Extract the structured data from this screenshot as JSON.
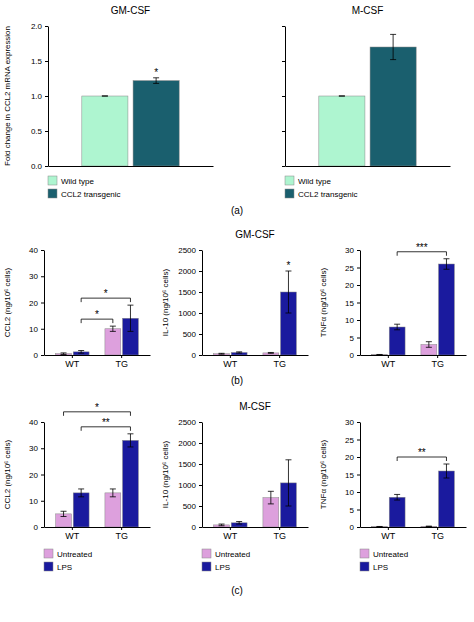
{
  "chart_data": [
    {
      "type": "bar",
      "title": "GM-CSF",
      "ylabel": "Fold change in CCL2 mRNA expression",
      "categories": [
        null
      ],
      "series": [
        {
          "name": "Wild type",
          "color": "#aef5d0",
          "values": [
            1.0
          ],
          "errors": [
            0.0
          ]
        },
        {
          "name": "CCL2 transgenic",
          "color": "#1a5f6e",
          "values": [
            1.22
          ],
          "errors": [
            0.04
          ]
        }
      ],
      "ylim": [
        0,
        2.0
      ],
      "yticks": [
        {
          "value": 0.0,
          "label": "0.0"
        },
        0.5,
        {
          "value": 1.0,
          "label": "1.0"
        },
        1.5,
        {
          "value": 2.0,
          "label": "2.0"
        }
      ],
      "tick_labels": "y",
      "legend": "bottom",
      "annotations": [
        {
          "text": "*",
          "at": [
            null,
            1
          ]
        },
        {
          "text": "(a)"
        }
      ]
    },
    {
      "type": "bar",
      "title": "M-CSF",
      "categories": [
        null
      ],
      "series": [
        {
          "name": "Wild type",
          "color": "#aef5d0",
          "values": [
            1.0
          ],
          "errors": [
            0.0
          ]
        },
        {
          "name": "CCL2 transgenic",
          "color": "#1a5f6e",
          "values": [
            1.7
          ],
          "errors": [
            0.18
          ]
        }
      ],
      "ylim": [
        0,
        2.0
      ],
      "yticks": [
        0.0,
        0.5,
        1.0,
        1.5,
        2.0
      ],
      "tick_labels": false,
      "legend": "bottom"
    },
    {
      "type": "bar",
      "ylabel": "CCL2 (ng/10⁶ cells)",
      "categories": [
        "WT",
        "TG"
      ],
      "series": [
        {
          "color": "#dda0dd",
          "values": [
            0.5,
            10.0
          ],
          "errors": [
            0.3,
            1.0
          ]
        },
        {
          "color": "#1a1a9e",
          "values": [
            1.2,
            14.0
          ],
          "errors": [
            0.5,
            5.0
          ]
        }
      ],
      "ylim": [
        0,
        40
      ],
      "yticks": [
        0,
        10,
        20,
        30,
        40
      ],
      "annotations": [
        {
          "text": "*",
          "from": [
            "WT",
            1
          ],
          "to": [
            "TG",
            0
          ]
        },
        {
          "text": "*",
          "from": [
            "WT",
            1
          ],
          "to": [
            "TG",
            1
          ]
        },
        {
          "text": "(b)"
        }
      ]
    },
    {
      "type": "bar",
      "title": "GM-CSF",
      "ylabel": "IL-10 (ng/10⁶ cells)",
      "categories": [
        "WT",
        "TG"
      ],
      "series": [
        {
          "color": "#dda0dd",
          "values": [
            30,
            50
          ],
          "errors": [
            10,
            10
          ]
        },
        {
          "color": "#1a1a9e",
          "values": [
            60,
            1500
          ],
          "errors": [
            15,
            500
          ]
        }
      ],
      "ylim": [
        0,
        2500
      ],
      "yticks": [
        0,
        500,
        1000,
        1500,
        2000,
        2500
      ],
      "annotations": [
        {
          "text": "*",
          "at": [
            "TG",
            1
          ]
        }
      ]
    },
    {
      "type": "bar",
      "ylabel": "TNFα (ng/10⁶ cells)",
      "categories": [
        "WT",
        "TG"
      ],
      "series": [
        {
          "color": "#dda0dd",
          "values": [
            0.1,
            3.0
          ],
          "errors": [
            0.05,
            0.8
          ]
        },
        {
          "color": "#1a1a9e",
          "values": [
            8.0,
            26.0
          ],
          "errors": [
            0.8,
            1.5
          ]
        }
      ],
      "ylim": [
        0,
        30
      ],
      "yticks": [
        0,
        5,
        10,
        15,
        20,
        25,
        30
      ],
      "annotations": [
        {
          "text": "***",
          "from": [
            "WT",
            1
          ],
          "to": [
            "TG",
            1
          ]
        }
      ]
    },
    {
      "type": "bar",
      "ylabel": "CCL2 (ng/10⁶ cells)",
      "categories": [
        "WT",
        "TG"
      ],
      "series": [
        {
          "name": "Untreated",
          "color": "#dda0dd",
          "values": [
            5.0,
            13.0
          ],
          "errors": [
            1.0,
            1.5
          ]
        },
        {
          "name": "LPS",
          "color": "#1a1a9e",
          "values": [
            13.0,
            33.0
          ],
          "errors": [
            1.5,
            2.5
          ]
        }
      ],
      "ylim": [
        0,
        40
      ],
      "yticks": [
        0,
        10,
        20,
        30,
        40
      ],
      "legend": "bottom",
      "annotations": [
        {
          "text": "*",
          "from": [
            "WT",
            0
          ],
          "to": [
            "TG",
            1
          ]
        },
        {
          "text": "**",
          "from": [
            "WT",
            1
          ],
          "to": [
            "TG",
            1
          ]
        },
        {
          "text": "(c)"
        }
      ]
    },
    {
      "type": "bar",
      "title": "M-CSF",
      "ylabel": "IL-10 (ng/10⁶ cells)",
      "categories": [
        "WT",
        "TG"
      ],
      "series": [
        {
          "name": "Untreated",
          "color": "#dda0dd",
          "values": [
            50,
            700
          ],
          "errors": [
            20,
            150
          ]
        },
        {
          "name": "LPS",
          "color": "#1a1a9e",
          "values": [
            100,
            1050
          ],
          "errors": [
            30,
            550
          ]
        }
      ],
      "ylim": [
        0,
        2500
      ],
      "yticks": [
        0,
        500,
        1000,
        1500,
        2000,
        2500
      ],
      "legend": "bottom"
    },
    {
      "type": "bar",
      "ylabel": "TNFα (ng/10⁶ cells)",
      "categories": [
        "WT",
        "TG"
      ],
      "series": [
        {
          "name": "Untreated",
          "color": "#dda0dd",
          "values": [
            0.1,
            0.2
          ],
          "errors": [
            0.05,
            0.05
          ]
        },
        {
          "name": "LPS",
          "color": "#1a1a9e",
          "values": [
            8.5,
            16.0
          ],
          "errors": [
            0.8,
            2.0
          ]
        }
      ],
      "ylim": [
        0,
        30
      ],
      "yticks": [
        0,
        5,
        10,
        15,
        20,
        25,
        30
      ],
      "legend": "bottom",
      "annotations": [
        {
          "text": "**",
          "from": [
            "WT",
            1
          ],
          "to": [
            "TG",
            1
          ]
        }
      ]
    }
  ]
}
